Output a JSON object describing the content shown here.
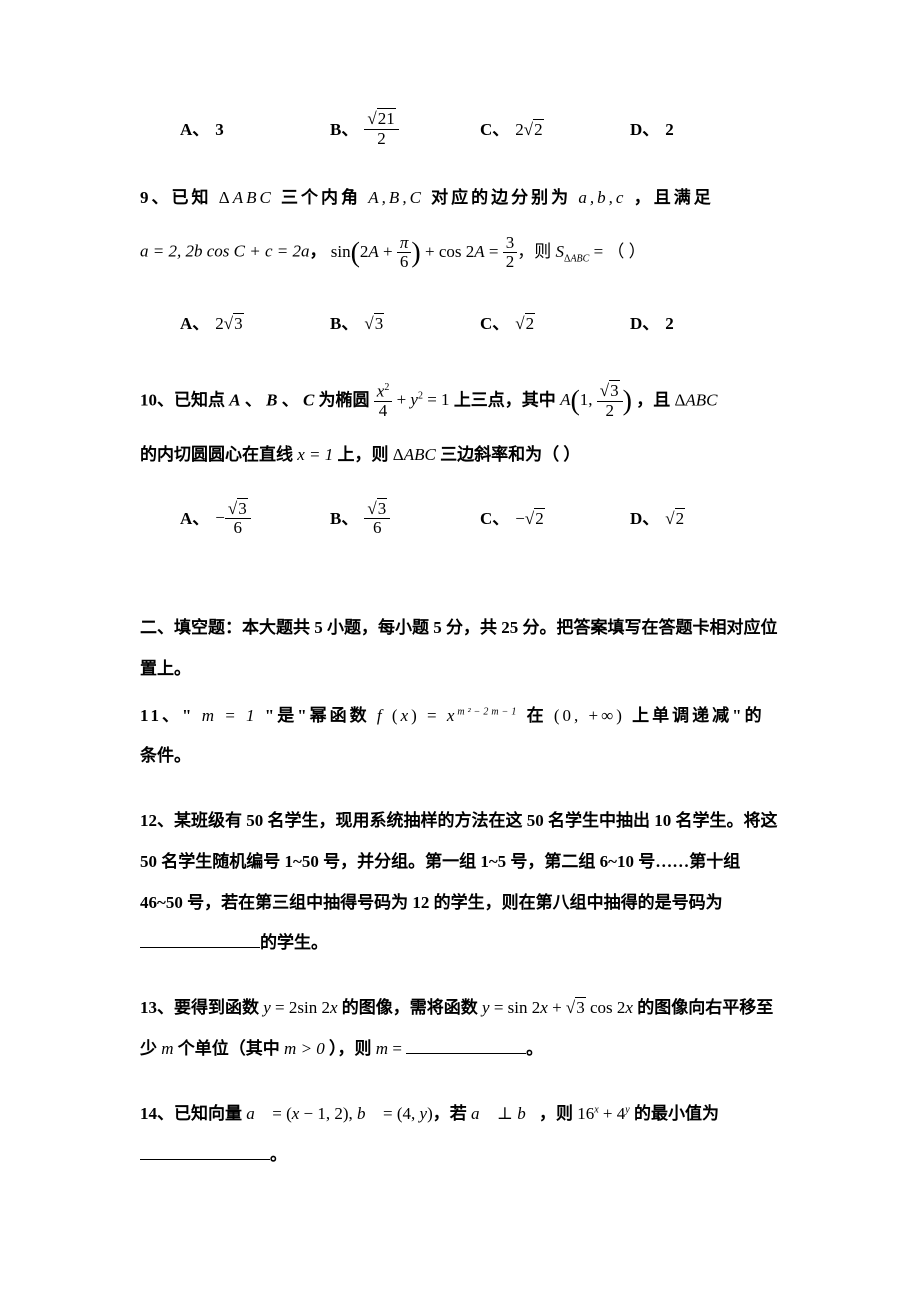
{
  "typography": {
    "body_fontsize": 17,
    "line_height": 2.4,
    "font_family": "SimSun, 宋体, serif",
    "math_font": "Times New Roman, serif",
    "text_color": "#000000",
    "background_color": "#ffffff"
  },
  "q8_options": {
    "a_label": "A、",
    "a_value": "3",
    "b_label": "B、",
    "b_value_html": "√21/2",
    "c_label": "C、",
    "c_value_html": "2√2",
    "d_label": "D、",
    "d_value": "2"
  },
  "q9": {
    "number": "9、",
    "text_1": "已知",
    "tri": "△ABC",
    "text_2": "三个内角",
    "angles": "A,B,C",
    "text_3": "对应的边分别为",
    "sides": "a,b,c",
    "text_4": "，且满足",
    "expr_1": "a = 2, 2b cos C + c = 2a",
    "sep_1": "，",
    "expr_2": "sin(2A + π/6) + cos 2A = 3/2",
    "sep_2": "，则",
    "s_label": "S",
    "s_sub": "△ABC",
    "eq": " = （        ）",
    "options": {
      "a_label": "A、",
      "a_value": "2√3",
      "b_label": "B、",
      "b_value": "√3",
      "c_label": "C、",
      "c_value": "√2",
      "d_label": "D、",
      "d_value": "2"
    }
  },
  "q10": {
    "number": "10、已知点",
    "A": "A",
    "sep1": " 、",
    "B": "B",
    "sep2": " 、",
    "C": "C",
    "text1": "为椭圆",
    "ellipse": "x²/4 + y² = 1",
    "text2": "上三点，其中",
    "point_A": "A(1, √3/2)",
    "text3": "，且",
    "tri": "△ABC",
    "text4": "的内切圆圆心在直线",
    "line": "x = 1",
    "text5": "上，则",
    "tri2": "△ABC",
    "text6": "三边斜率和为（      ）",
    "options": {
      "a_label": "A、",
      "a_value": "−√3/6",
      "b_label": "B、",
      "b_value": "√3/6",
      "c_label": "C、",
      "c_value": "−√2",
      "d_label": "D、",
      "d_value": "√2"
    }
  },
  "section2": {
    "header": "二、填空题：本大题共 5 小题，每小题 5 分，共 25 分。把答案填写在答题卡相对应位置上。"
  },
  "q11": {
    "number": "11、\"",
    "m_eq": "m = 1",
    "text1": "\"是\"幂函数",
    "fn": "f(x) = x^(m²−2m−1)",
    "text2": "在",
    "interval": "(0, +∞)",
    "text3": "上单调递减\"的",
    "text4": "条件。"
  },
  "q12": {
    "full": "12、某班级有 50 名学生，现用系统抽样的方法在这 50 名学生中抽出 10 名学生。将这 50 名学生随机编号 1~50 号，并分组。第一组 1~5 号，第二组 6~10 号……第十组 46~50 号，若在第三组中抽得号码为 12 的学生，则在第八组中抽得的是号码为",
    "end": "的学生。"
  },
  "q13": {
    "number": "13、要得到函数",
    "fn1": "y = 2sin 2x",
    "text1": "的图像，需将函数",
    "fn2": "y = sin 2x + √3 cos 2x",
    "text2": "的图像向右平移至少",
    "m": "m",
    "text3": "个单位（其中",
    "cond": "m > 0",
    "text4": "），则",
    "m2": "m",
    "eq": " = ",
    "end": "。"
  },
  "q14": {
    "number": "14、已知向量",
    "va": "a⃗ = (x−1, 2), b⃗ = (4, y)",
    "text1": "，若",
    "perp": "a⃗ ⊥ b⃗",
    "text2": "，则",
    "expr": "16^x + 4^y",
    "text3": "的最小值为",
    "end": "。"
  }
}
